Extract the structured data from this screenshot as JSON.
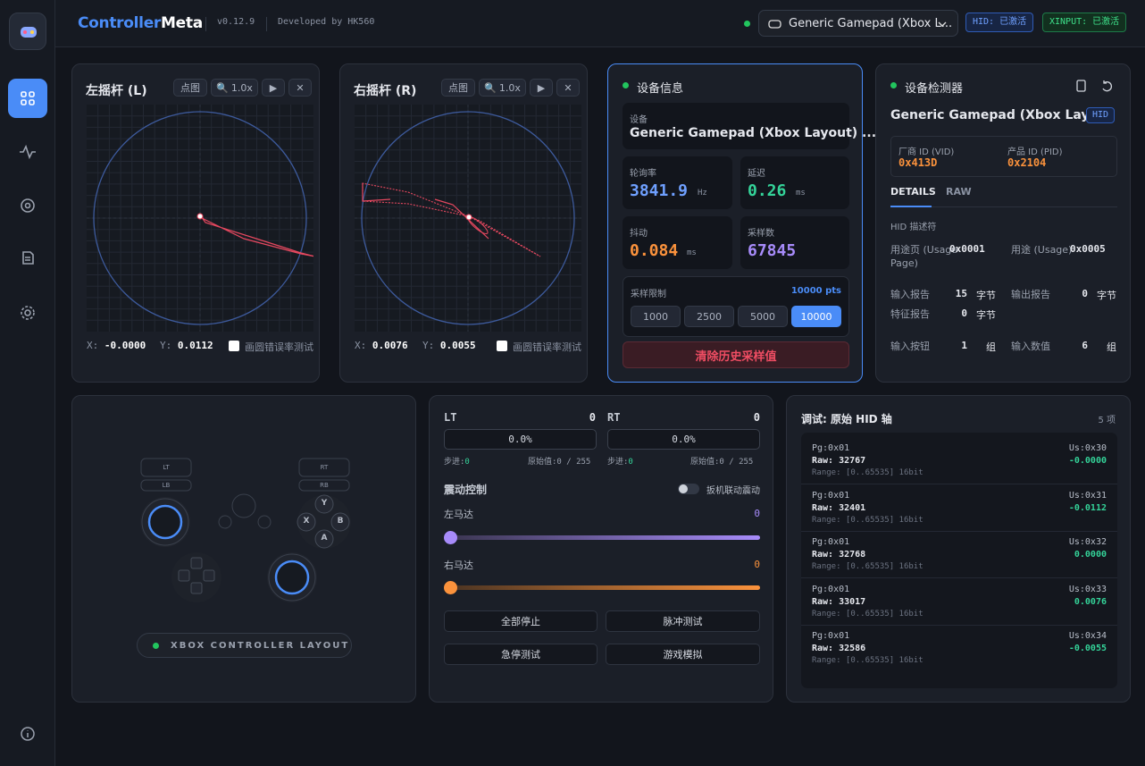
{
  "header": {
    "brand_a": "Controller",
    "brand_b": "Meta",
    "version": "v0.12.9",
    "developer": "Developed by HK560",
    "device": "Generic Gamepad (Xbox L...",
    "hid_badge": "HID: 已激活",
    "xinput_badge": "XINPUT: 已激活"
  },
  "left_stick": {
    "title": "左摇杆 (L)",
    "dots": "点图",
    "zoom": "1.0x",
    "x_label": "X:",
    "x_value": "-0.0000",
    "y_label": "Y:",
    "y_value": "0.0112",
    "checkbox": "画圆错误率测试"
  },
  "right_stick": {
    "title": "右摇杆 (R)",
    "dots": "点图",
    "zoom": "1.0x",
    "x_label": "X:",
    "x_value": "0.0076",
    "y_label": "Y:",
    "y_value": "0.0055",
    "checkbox": "画圆错误率测试"
  },
  "device_info": {
    "title": "设备信息",
    "device_label": "设备",
    "device_name": "Generic Gamepad (Xbox Layout) ...",
    "polling_label": "轮询率",
    "polling_value": "3841.9",
    "polling_unit": "Hz",
    "latency_label": "延迟",
    "latency_value": "0.26",
    "latency_unit": "ms",
    "jitter_label": "抖动",
    "jitter_value": "0.084",
    "jitter_unit": "ms",
    "samples_label": "采样数",
    "samples_value": "67845",
    "limit_label": "采样限制",
    "limit_value": "10000 pts",
    "limit_options": [
      "1000",
      "2500",
      "5000",
      "10000"
    ],
    "clear_button": "清除历史采样值"
  },
  "detector": {
    "title": "设备检测器",
    "device_name": "Generic Gamepad (Xbox Lay...",
    "badge": "HID",
    "vid_label": "厂商 ID (VID)",
    "vid_value": "0x413D",
    "pid_label": "产品 ID (PID)",
    "pid_value": "0x2104",
    "tabs": [
      "DETAILS",
      "RAW"
    ],
    "section": "HID 描述符",
    "rows": [
      [
        "用途页 (Usage Page)",
        "0x0001",
        "",
        "用途 (Usage)",
        "0x0005",
        ""
      ],
      [
        "输入报告",
        "15",
        "字节",
        "输出报告",
        "0",
        "字节"
      ],
      [
        "特征报告",
        "0",
        "字节"
      ],
      [
        "输入按钮",
        "1",
        "组",
        "输入数值",
        "6",
        "组"
      ]
    ]
  },
  "controller": {
    "lt": "LT",
    "lb": "LB",
    "rt": "RT",
    "rb": "RB",
    "y": "Y",
    "x": "X",
    "b": "B",
    "a": "A",
    "layout_label": "XBOX CONTROLLER LAYOUT"
  },
  "triggers": {
    "lt": {
      "name": "LT",
      "value": "0",
      "percent": "0.0%",
      "step_label": "步进:",
      "step": "0",
      "raw_label": "原始值:",
      "raw": "0 / 255"
    },
    "rt": {
      "name": "RT",
      "value": "0",
      "percent": "0.0%",
      "step_label": "步进:",
      "step": "0",
      "raw_label": "原始值:",
      "raw": "0 / 255"
    }
  },
  "vibration": {
    "title": "震动控制",
    "toggle": "扳机联动震动",
    "left_label": "左马达",
    "left_value": "0",
    "right_label": "右马达",
    "right_value": "0",
    "buttons": [
      "全部停止",
      "脉冲测试",
      "急停测试",
      "游戏模拟"
    ]
  },
  "hid_axes": {
    "title": "调试: 原始 HID 轴",
    "count": "5 项",
    "items": [
      {
        "page": "Pg:0x01",
        "usage": "Us:0x30",
        "raw": "Raw: 32767",
        "value": "-0.0000",
        "range": "Range: [0..65535] 16bit"
      },
      {
        "page": "Pg:0x01",
        "usage": "Us:0x31",
        "raw": "Raw: 32401",
        "value": "-0.0112",
        "range": "Range: [0..65535] 16bit"
      },
      {
        "page": "Pg:0x01",
        "usage": "Us:0x32",
        "raw": "Raw: 32768",
        "value": "0.0000",
        "range": "Range: [0..65535] 16bit"
      },
      {
        "page": "Pg:0x01",
        "usage": "Us:0x33",
        "raw": "Raw: 33017",
        "value": "0.0076",
        "range": "Range: [0..65535] 16bit"
      },
      {
        "page": "Pg:0x01",
        "usage": "Us:0x34",
        "raw": "Raw: 32586",
        "value": "-0.0055",
        "range": "Range: [0..65535] 16bit"
      }
    ]
  }
}
